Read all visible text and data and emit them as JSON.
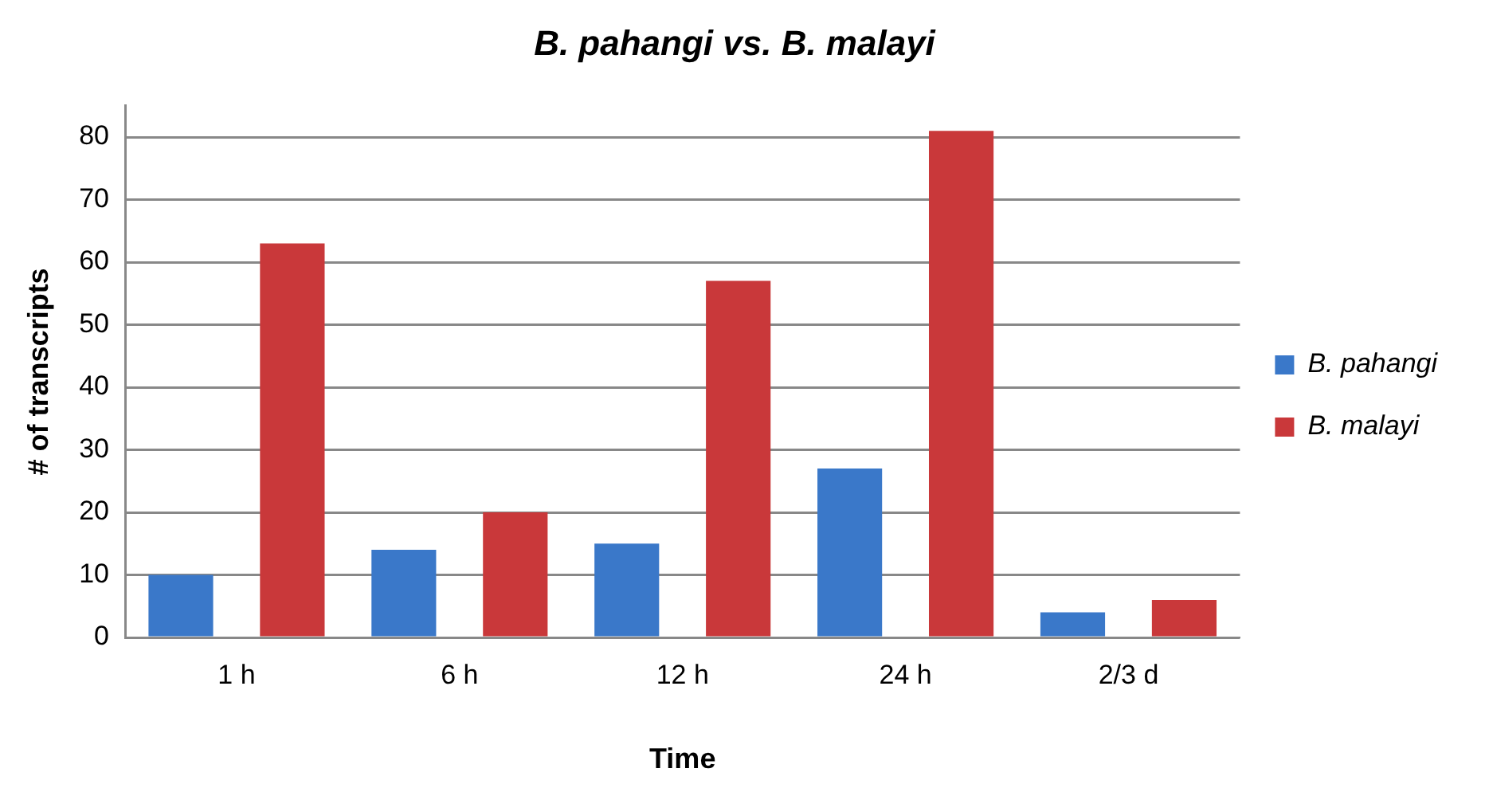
{
  "chart_data": {
    "type": "bar",
    "title": "B. pahangi vs. B. malayi",
    "xlabel": "Time",
    "ylabel": "# of transcripts",
    "categories": [
      "1 h",
      "6 h",
      "12 h",
      "24 h",
      "2/3 d"
    ],
    "series": [
      {
        "name": "B. pahangi",
        "color": "#3a78c9",
        "values": [
          10,
          14,
          15,
          27,
          4
        ]
      },
      {
        "name": "B. malayi",
        "color": "#c9383a",
        "values": [
          63,
          20,
          57,
          81,
          6
        ]
      }
    ],
    "ylim": [
      0,
      85
    ],
    "yticks": [
      0,
      10,
      20,
      30,
      40,
      50,
      60,
      70,
      80
    ],
    "grid": "y",
    "legend": "right"
  }
}
